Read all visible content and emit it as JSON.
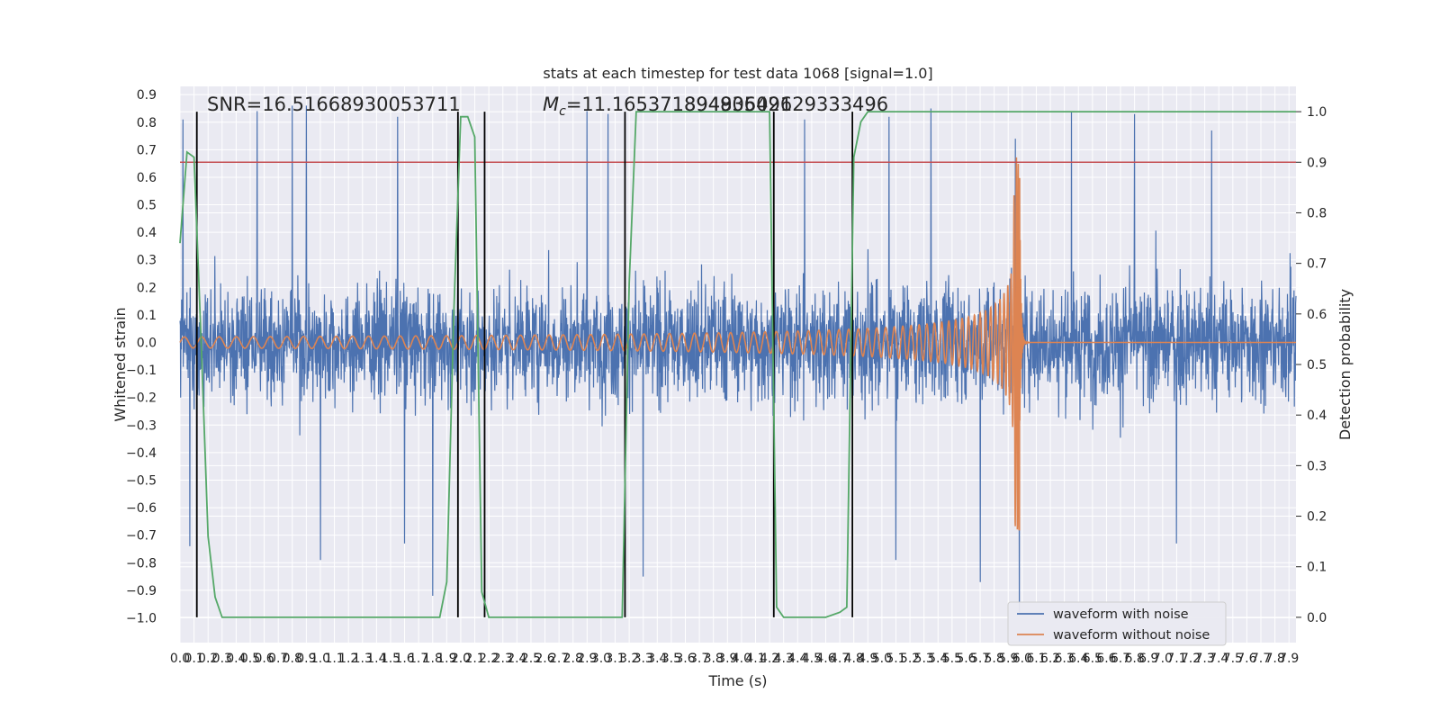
{
  "chart_data": {
    "type": "line",
    "title": "stats at each timestep for test data 1068 [signal=1.0]",
    "xlabel": "Time (s)",
    "ylabel": "Whitened strain",
    "y2label": "Detection probability",
    "xlim": [
      0.0,
      7.95
    ],
    "ylim": [
      -1.09,
      0.93
    ],
    "y2lim": [
      -0.05,
      1.05
    ],
    "x_ticks": [
      0.0,
      0.1,
      0.2,
      0.3,
      0.4,
      0.5,
      0.6,
      0.7,
      0.8,
      0.9,
      1.0,
      1.1,
      1.2,
      1.3,
      1.4,
      1.5,
      1.6,
      1.7,
      1.8,
      1.9,
      2.0,
      2.1,
      2.2,
      2.3,
      2.4,
      2.5,
      2.6,
      2.7,
      2.8,
      2.9,
      3.0,
      3.1,
      3.2,
      3.3,
      3.4,
      3.5,
      3.6,
      3.7,
      3.8,
      3.9,
      4.0,
      4.1,
      4.2,
      4.3,
      4.4,
      4.5,
      4.6,
      4.7,
      4.8,
      4.9,
      5.0,
      5.1,
      5.2,
      5.3,
      5.4,
      5.5,
      5.6,
      5.7,
      5.8,
      5.9,
      6.0,
      6.1,
      6.2,
      6.3,
      6.4,
      6.5,
      6.6,
      6.7,
      6.8,
      6.9,
      7.0,
      7.1,
      7.2,
      7.3,
      7.4,
      7.5,
      7.6,
      7.7,
      7.8,
      7.9
    ],
    "y_ticks": [
      0.9,
      0.8,
      0.7,
      0.6,
      0.5,
      0.4,
      0.3,
      0.2,
      0.1,
      0.0,
      -0.1,
      -0.2,
      -0.3,
      -0.4,
      -0.5,
      -0.6,
      -0.7,
      -0.8,
      -0.9,
      -1.0
    ],
    "y2_ticks": [
      1.0,
      0.9,
      0.8,
      0.7,
      0.6,
      0.5,
      0.4,
      0.3,
      0.2,
      0.1,
      0.0
    ],
    "grid": true,
    "legend_position": "lower-right",
    "annotations": {
      "snr": "SNR=16.51668930053711",
      "mc_prefix": "M",
      "mc_sub": "c",
      "mc_value": "=11.165371894836426",
      "overlap_value": "89490509129333496"
    },
    "series": [
      {
        "name": "waveform with noise",
        "color": "#4c72b0",
        "axis": "left",
        "style": "noise",
        "amplitude_typical": 0.45,
        "peaks": [
          {
            "x": 0.02,
            "y": 0.81
          },
          {
            "x": 0.07,
            "y": -0.74
          },
          {
            "x": 0.55,
            "y": 0.84
          },
          {
            "x": 0.8,
            "y": 0.86
          },
          {
            "x": 0.9,
            "y": 0.86
          },
          {
            "x": 1.0,
            "y": -0.79
          },
          {
            "x": 1.55,
            "y": 0.82
          },
          {
            "x": 1.6,
            "y": -0.73
          },
          {
            "x": 1.8,
            "y": -0.92
          },
          {
            "x": 2.9,
            "y": 0.84
          },
          {
            "x": 3.05,
            "y": 0.83
          },
          {
            "x": 3.3,
            "y": -0.85
          },
          {
            "x": 4.45,
            "y": 0.81
          },
          {
            "x": 5.05,
            "y": 0.82
          },
          {
            "x": 5.1,
            "y": -0.79
          },
          {
            "x": 5.35,
            "y": 0.85
          },
          {
            "x": 5.7,
            "y": -0.87
          },
          {
            "x": 5.95,
            "y": 0.74
          },
          {
            "x": 5.98,
            "y": -0.98
          },
          {
            "x": 6.35,
            "y": 0.84
          },
          {
            "x": 6.8,
            "y": 0.83
          },
          {
            "x": 7.35,
            "y": 0.77
          },
          {
            "x": 7.1,
            "y": -0.73
          }
        ]
      },
      {
        "name": "waveform without noise",
        "color": "#dd8452",
        "axis": "left",
        "style": "chirp",
        "start_amplitude": 0.02,
        "peak_amplitude": 0.68,
        "merger_time": 5.98,
        "ringdown_end": 6.02
      },
      {
        "name": "detection probability",
        "color": "#55a868",
        "axis": "right",
        "x": [
          0.0,
          0.05,
          0.1,
          0.15,
          0.2,
          0.25,
          0.3,
          0.5,
          1.0,
          1.5,
          1.75,
          1.8,
          1.85,
          1.9,
          1.95,
          2.0,
          2.05,
          2.1,
          2.15,
          2.2,
          2.25,
          2.3,
          2.35,
          2.5,
          3.0,
          3.1,
          3.15,
          3.2,
          3.25,
          3.3,
          3.5,
          4.0,
          4.2,
          4.25,
          4.3,
          4.35,
          4.4,
          4.5,
          4.6,
          4.7,
          4.75,
          4.8,
          4.85,
          4.9,
          4.95,
          5.0,
          5.5,
          6.0,
          7.0,
          7.95
        ],
        "y": [
          0.74,
          0.92,
          0.91,
          0.55,
          0.16,
          0.04,
          0.0,
          0.0,
          0.0,
          0.0,
          0.0,
          0.0,
          0.0,
          0.07,
          0.6,
          0.99,
          0.99,
          0.95,
          0.05,
          0.0,
          0.0,
          0.0,
          0.0,
          0.0,
          0.0,
          0.0,
          0.0,
          0.66,
          1.0,
          1.0,
          1.0,
          1.0,
          1.0,
          0.02,
          0.0,
          0.0,
          0.0,
          0.0,
          0.0,
          0.01,
          0.02,
          0.91,
          0.98,
          1.0,
          1.0,
          1.0,
          1.0,
          1.0,
          1.0,
          1.0
        ]
      },
      {
        "name": "threshold",
        "color": "#c44e52",
        "axis": "right",
        "value": 0.9
      }
    ],
    "vlines_x": [
      0.12,
      1.98,
      2.17,
      3.17,
      4.23,
      4.79
    ],
    "vline_range": [
      0.0,
      1.0
    ],
    "vline_color": "#000000"
  },
  "legend": {
    "items": [
      {
        "label": "waveform with noise",
        "color": "#4c72b0"
      },
      {
        "label": "waveform without noise",
        "color": "#dd8452"
      }
    ]
  }
}
